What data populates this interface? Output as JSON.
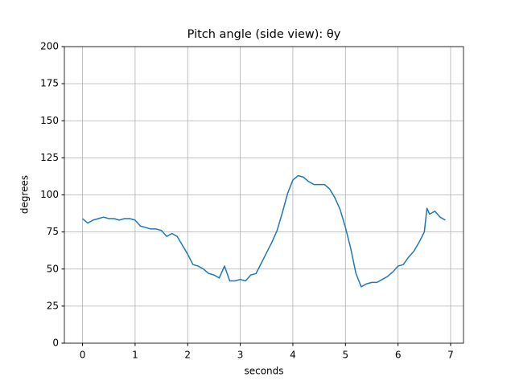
{
  "chart_data": {
    "type": "line",
    "title": "Pitch angle (side view): θy",
    "x_label": "seconds",
    "y_label": "degrees",
    "x": [
      0,
      0.1,
      0.2,
      0.3,
      0.4,
      0.5,
      0.6,
      0.7,
      0.8,
      0.9,
      1.0,
      1.1,
      1.2,
      1.3,
      1.4,
      1.5,
      1.6,
      1.7,
      1.8,
      1.9,
      2.0,
      2.1,
      2.2,
      2.3,
      2.4,
      2.5,
      2.6,
      2.7,
      2.8,
      2.9,
      3.0,
      3.1,
      3.2,
      3.3,
      3.4,
      3.5,
      3.6,
      3.7,
      3.8,
      3.9,
      4.0,
      4.1,
      4.2,
      4.3,
      4.4,
      4.5,
      4.6,
      4.7,
      4.8,
      4.9,
      5.0,
      5.1,
      5.2,
      5.3,
      5.4,
      5.5,
      5.6,
      5.7,
      5.8,
      5.9,
      6.0,
      6.1,
      6.2,
      6.3,
      6.4,
      6.5,
      6.55,
      6.6,
      6.7,
      6.8,
      6.9
    ],
    "series": [
      {
        "name": "theta_y",
        "color": "#1f77b4",
        "values": [
          84,
          81,
          83,
          84,
          85,
          84,
          84,
          83,
          84,
          84,
          83,
          79,
          78,
          77,
          77,
          76,
          72,
          74,
          72,
          66,
          60,
          53,
          52,
          50,
          47,
          46,
          44,
          52,
          42,
          42,
          43,
          42,
          46,
          47,
          54,
          61,
          68,
          76,
          88,
          101,
          110,
          113,
          112,
          109,
          107,
          107,
          107,
          104,
          98,
          90,
          78,
          64,
          47,
          38,
          40,
          41,
          41,
          43,
          45,
          48,
          52,
          53,
          58,
          62,
          68,
          75,
          91,
          87,
          89,
          85,
          83
        ]
      }
    ],
    "xlim": [
      -0.345,
      7.245
    ],
    "xticks": [
      0,
      1,
      2,
      3,
      4,
      5,
      6,
      7
    ],
    "ylim": [
      0,
      200
    ],
    "yticks": [
      0,
      25,
      50,
      75,
      100,
      125,
      150,
      175,
      200
    ],
    "grid": true
  }
}
